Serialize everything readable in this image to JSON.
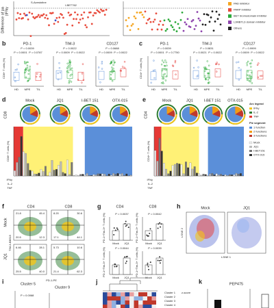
{
  "panel_a": {
    "letter": "a",
    "y_label": "Difference of pa",
    "y_label2": "(IFNγ",
    "callouts": [
      "S-Azestotine",
      "I-BET762"
    ],
    "legend": [
      "PAD inhibitor",
      "PARP inhibitor",
      "BET bromodomain inhibitor",
      "L3MBTL3 domain inhibitor",
      "Others"
    ]
  },
  "panel_b": {
    "letter": "b",
    "y_label": "CD8+ T cells (%)",
    "plots": [
      {
        "title": "PD-1",
        "p": [
          "P = 0.0039",
          "P < 0.0001",
          "P = 0.0787"
        ]
      },
      {
        "title": "TIM-3",
        "p": [
          "P = 0.0022",
          "P = 0.0009",
          "P = 0.0022"
        ]
      },
      {
        "title": "CD127",
        "p": [
          "P = 0.0688",
          "P = 0.0009",
          "P = 0.0022"
        ]
      }
    ],
    "groups": [
      "HD",
      "MPE",
      "TIL"
    ]
  },
  "panel_c": {
    "letter": "c",
    "y_label": "CD4+ T cells (%)",
    "plots": [
      {
        "title": "PD-1",
        "p": [
          "P = 0.0039",
          "P = 0.0001",
          "P = 0.7750"
        ]
      },
      {
        "title": "TIM-3",
        "p": [
          "P = 0.0831",
          "P = 0.0021",
          "P = 0.0022"
        ]
      },
      {
        "title": "CD127",
        "p": [
          "P = 0.9999",
          "P = 0.0009",
          "P = 0.0022"
        ]
      }
    ],
    "groups": [
      "HD",
      "MPE",
      "TIL"
    ]
  },
  "panel_d": {
    "letter": "d",
    "subset": "CD8",
    "treatments": [
      "Mock",
      "JQ1",
      "I-BET 151",
      "OTX-015"
    ],
    "y_label": "CD8+ T cells (%)",
    "rows": [
      "IFNγ",
      "IL-2",
      "TNF"
    ]
  },
  "panel_e": {
    "letter": "e",
    "subset": "CD4",
    "treatments": [
      "Mock",
      "JQ1",
      "I-BET 151",
      "OTX-015"
    ],
    "y_label": "CD4+ T cells (%)",
    "rows": [
      "IFNγ",
      "IL-2",
      "TNF"
    ],
    "arc_legend": {
      "title": "Arc legend",
      "items": [
        "IFNγ",
        "IL-2",
        "TNF"
      ]
    },
    "pie_legend": {
      "title": "Pie segment",
      "items": [
        "1 function",
        "2 functions",
        "3 functions"
      ]
    },
    "bar_legend": [
      "Mock",
      "JQ1",
      "I-BET151",
      "OTX-015"
    ]
  },
  "panel_f": {
    "letter": "f",
    "columns": [
      "CD4",
      "CD8"
    ],
    "rows": [
      "Mock",
      "JQ1"
    ],
    "y_label": "TIM-3-BB515",
    "x_label": "PD-1-PE",
    "quadrants": [
      [
        "21.8",
        "45.4",
        "20.5",
        "12.3"
      ],
      [
        "8.20",
        "30.6",
        "17.1",
        "44.1"
      ],
      [
        "6.46",
        "28.1",
        "25.5",
        "40.0"
      ],
      [
        "5.73",
        "10.6",
        "21.4",
        "62.3"
      ]
    ]
  },
  "panel_g": {
    "letter": "g",
    "columns": [
      "CD4",
      "CD8"
    ],
    "y_label": "PD-1+Tim-3+ T cells (%)",
    "groups": [
      "Mock",
      "JQ1"
    ],
    "p": [
      "P = 0.0037",
      "P = 0.0042",
      "P = 0.0044",
      "P = 0.0039"
    ]
  },
  "panel_h": {
    "letter": "h",
    "titles": [
      "Mock",
      "JQ1"
    ],
    "x_label": "t-SNE 1",
    "y_label": "t-SNE 2"
  },
  "panel_i": {
    "letter": "i",
    "titles": [
      "Cluster 5",
      "Cluster 9"
    ],
    "p": "P = 0.0068"
  },
  "panel_j": {
    "letter": "j",
    "legend_title": "z-score",
    "clusters": [
      "Cluster 1",
      "Cluster 2",
      "Cluster 3",
      "Cluster 4"
    ]
  },
  "panel_k": {
    "letter": "k",
    "title": "PEP475"
  }
}
